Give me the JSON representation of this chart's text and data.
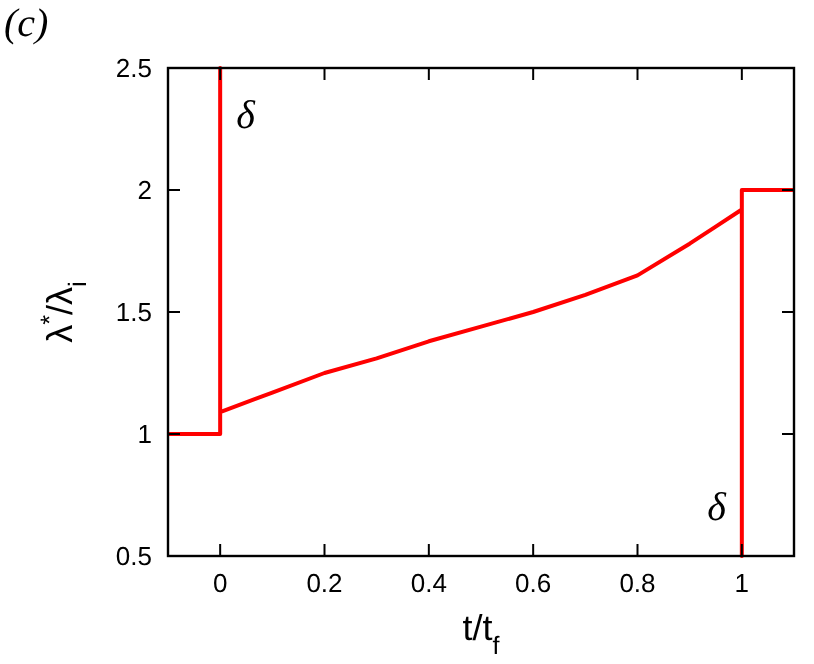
{
  "chart_data": {
    "type": "line",
    "xlabel": "t/t$_{f}$",
    "ylabel": "λ$^{*}$/λ$_{i}$",
    "x": [
      -0.1,
      0,
      0,
      0,
      0.1,
      0.2,
      0.3,
      0.4,
      0.5,
      0.6,
      0.7,
      0.8,
      0.9,
      0.95,
      1,
      1,
      1,
      1.1
    ],
    "series": [
      {
        "color": "#ff0000",
        "values": [
          1,
          1,
          2.5,
          1.09,
          1.17,
          1.25,
          1.31,
          1.38,
          1.44,
          1.5,
          1.57,
          1.65,
          1.78,
          1.85,
          1.92,
          0.5,
          2,
          2
        ]
      }
    ],
    "xlim": [
      -0.1,
      1.1
    ],
    "xticks": [
      0,
      0.2,
      0.4,
      0.6,
      0.8,
      1
    ],
    "ylim": [
      0.5,
      2.5
    ],
    "yticks": [
      0.5,
      1,
      1.5,
      2,
      2.5
    ],
    "grid": false,
    "marker": "none",
    "line_style": "solid",
    "annotations": [
      "(c)",
      {
        "text": "δ",
        "x": 0,
        "y": 2.5
      },
      {
        "text": "δ",
        "x": 1,
        "y": 0.5
      }
    ]
  }
}
